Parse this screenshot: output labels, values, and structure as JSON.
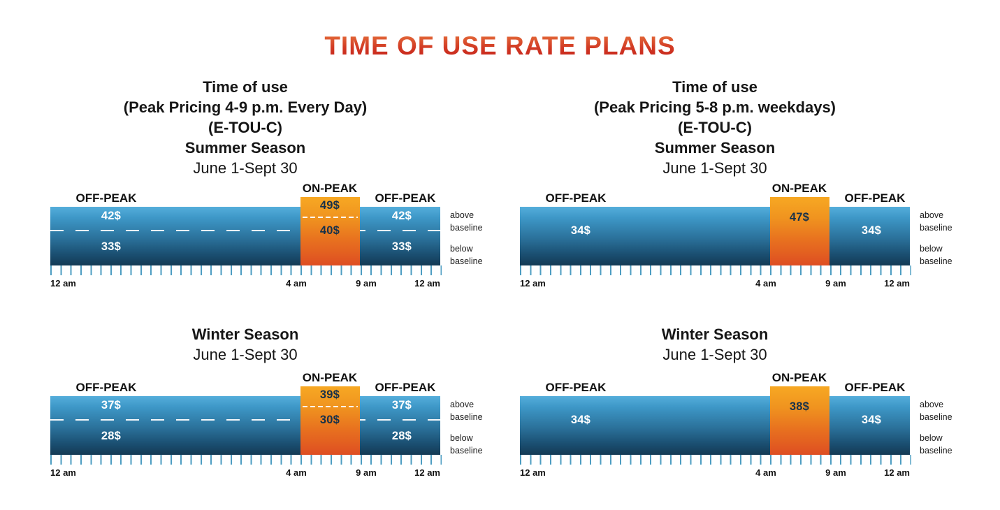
{
  "main_title": "TIME OF USE RATE PLANS",
  "colors": {
    "title_gradient_top": "#E87840",
    "title_gradient_bottom": "#C21E19",
    "bar_blue_top": "#55AEDB",
    "bar_blue_bottom": "#143A54",
    "peak_orange_top": "#F7A823",
    "peak_orange_bottom": "#DE4E22",
    "tick_blue": "#4D9DC2",
    "rate_text_on_blue": "#FFFFFF",
    "rate_text_on_peak": "#17314A"
  },
  "charts": [
    {
      "title_lines": [
        "Time of use",
        "(Peak Pricing 4-9 p.m. Every Day)",
        "(E-TOU-C)",
        "Summer Season",
        "June 1-Sept 30"
      ],
      "labels": {
        "offpeak_left": "OFF-PEAK",
        "onpeak": "ON-PEAK",
        "offpeak_right": "OFF-PEAK"
      },
      "prices": {
        "left_above": "42$",
        "left_below": "33$",
        "peak_above": "49$",
        "peak_below": "40$",
        "right_above": "42$",
        "right_below": "33$"
      },
      "axis_ticks": [
        "12 am",
        "4 am",
        "9 am",
        "12 am"
      ],
      "baseline_labels": {
        "above": "above baseline",
        "below": "below baseline"
      }
    },
    {
      "title_lines": [
        "Time of use",
        "(Peak Pricing 5-8 p.m. weekdays)",
        "(E-TOU-C)",
        "Summer Season",
        "June 1-Sept 30"
      ],
      "labels": {
        "offpeak_left": "OFF-PEAK",
        "onpeak": "ON-PEAK",
        "offpeak_right": "OFF-PEAK"
      },
      "prices": {
        "left": "34$",
        "peak": "47$",
        "right": "34$"
      },
      "axis_ticks": [
        "12 am",
        "4 am",
        "9 am",
        "12 am"
      ],
      "baseline_labels": {
        "above": "above baseline",
        "below": "below baseline"
      }
    },
    {
      "title_lines": [
        "Winter Season",
        "June 1-Sept 30"
      ],
      "labels": {
        "offpeak_left": "OFF-PEAK",
        "onpeak": "ON-PEAK",
        "offpeak_right": "OFF-PEAK"
      },
      "prices": {
        "left_above": "37$",
        "left_below": "28$",
        "peak_above": "39$",
        "peak_below": "30$",
        "right_above": "37$",
        "right_below": "28$"
      },
      "axis_ticks": [
        "12 am",
        "4 am",
        "9 am",
        "12 am"
      ],
      "baseline_labels": {
        "above": "above baseline",
        "below": "below baseline"
      }
    },
    {
      "title_lines": [
        "Winter Season",
        "June 1-Sept 30"
      ],
      "labels": {
        "offpeak_left": "OFF-PEAK",
        "onpeak": "ON-PEAK",
        "offpeak_right": "OFF-PEAK"
      },
      "prices": {
        "left": "34$",
        "peak": "38$",
        "right": "34$"
      },
      "axis_ticks": [
        "12 am",
        "4 am",
        "9 am",
        "12 am"
      ],
      "baseline_labels": {
        "above": "above baseline",
        "below": "below baseline"
      }
    }
  ],
  "chart_data": [
    {
      "type": "bar",
      "subtype": "24h-timeline",
      "title": "Time of use (Peak Pricing 4-9 p.m. Every Day) (E-TOU-C) Summer Season June 1-Sept 30",
      "x_ticks": [
        "12 am",
        "4 am",
        "9 am",
        "12 am"
      ],
      "segments": [
        {
          "label": "OFF-PEAK",
          "from_tick": "12 am",
          "to_tick": "4 am",
          "rate_above_baseline": "42$",
          "rate_below_baseline": "33$"
        },
        {
          "label": "ON-PEAK",
          "from_tick": "4 am",
          "to_tick": "9 am",
          "rate_above_baseline": "49$",
          "rate_below_baseline": "40$"
        },
        {
          "label": "OFF-PEAK",
          "from_tick": "9 am",
          "to_tick": "12 am",
          "rate_above_baseline": "42$",
          "rate_below_baseline": "33$"
        }
      ],
      "baseline_split": true
    },
    {
      "type": "bar",
      "subtype": "24h-timeline",
      "title": "Time of use (Peak Pricing 5-8 p.m. weekdays) (E-TOU-C) Summer Season June 1-Sept 30",
      "x_ticks": [
        "12 am",
        "4 am",
        "9 am",
        "12 am"
      ],
      "segments": [
        {
          "label": "OFF-PEAK",
          "from_tick": "12 am",
          "to_tick": "4 am",
          "rate": "34$"
        },
        {
          "label": "ON-PEAK",
          "from_tick": "4 am",
          "to_tick": "9 am",
          "rate": "47$"
        },
        {
          "label": "OFF-PEAK",
          "from_tick": "9 am",
          "to_tick": "12 am",
          "rate": "34$"
        }
      ],
      "baseline_split": false
    },
    {
      "type": "bar",
      "subtype": "24h-timeline",
      "title": "Winter Season June 1-Sept 30 (Peak Pricing 4-9 p.m. Every Day plan)",
      "x_ticks": [
        "12 am",
        "4 am",
        "9 am",
        "12 am"
      ],
      "segments": [
        {
          "label": "OFF-PEAK",
          "from_tick": "12 am",
          "to_tick": "4 am",
          "rate_above_baseline": "37$",
          "rate_below_baseline": "28$"
        },
        {
          "label": "ON-PEAK",
          "from_tick": "4 am",
          "to_tick": "9 am",
          "rate_above_baseline": "39$",
          "rate_below_baseline": "30$"
        },
        {
          "label": "OFF-PEAK",
          "from_tick": "9 am",
          "to_tick": "12 am",
          "rate_above_baseline": "37$",
          "rate_below_baseline": "28$"
        }
      ],
      "baseline_split": true
    },
    {
      "type": "bar",
      "subtype": "24h-timeline",
      "title": "Winter Season June 1-Sept 30 (Peak Pricing 5-8 p.m. weekdays plan)",
      "x_ticks": [
        "12 am",
        "4 am",
        "9 am",
        "12 am"
      ],
      "segments": [
        {
          "label": "OFF-PEAK",
          "from_tick": "12 am",
          "to_tick": "4 am",
          "rate": "34$"
        },
        {
          "label": "ON-PEAK",
          "from_tick": "4 am",
          "to_tick": "9 am",
          "rate": "38$"
        },
        {
          "label": "OFF-PEAK",
          "from_tick": "9 am",
          "to_tick": "12 am",
          "rate": "34$"
        }
      ],
      "baseline_split": false
    }
  ]
}
